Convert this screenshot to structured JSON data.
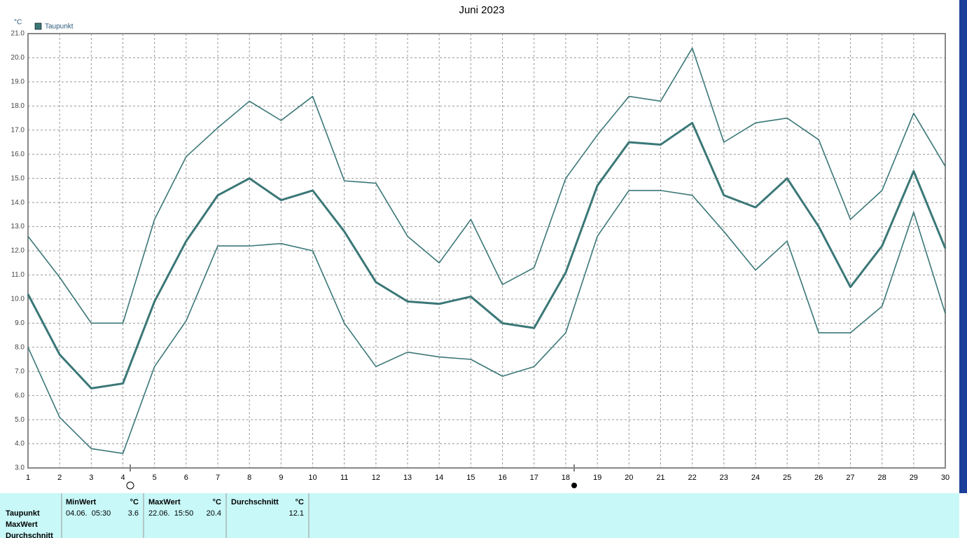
{
  "chart_data": {
    "type": "line",
    "title": "Juni 2023",
    "y_label": "°C",
    "x": [
      1,
      2,
      3,
      4,
      5,
      6,
      7,
      8,
      9,
      10,
      11,
      12,
      13,
      14,
      15,
      16,
      17,
      18,
      19,
      20,
      21,
      22,
      23,
      24,
      25,
      26,
      27,
      28,
      29,
      30
    ],
    "xlim": [
      1,
      30
    ],
    "xticks": [
      1,
      2,
      3,
      4,
      5,
      6,
      7,
      8,
      9,
      10,
      11,
      12,
      13,
      14,
      15,
      16,
      17,
      18,
      19,
      20,
      21,
      22,
      23,
      24,
      25,
      26,
      27,
      28,
      29,
      30
    ],
    "ylim": [
      3,
      21
    ],
    "yticks": [
      {
        "value": 3,
        "label": "3.0"
      },
      {
        "value": 4,
        "label": "4.0"
      },
      {
        "value": 5,
        "label": "5.0"
      },
      {
        "value": 6,
        "label": "6.0"
      },
      {
        "value": 7,
        "label": "7.0"
      },
      {
        "value": 8,
        "label": "8.0"
      },
      {
        "value": 9,
        "label": "9.0"
      },
      {
        "value": 10,
        "label": "10.0"
      },
      {
        "value": 11,
        "label": "11.0"
      },
      {
        "value": 12,
        "label": "12.0"
      },
      {
        "value": 13,
        "label": "13.0"
      },
      {
        "value": 14,
        "label": "14.0"
      },
      {
        "value": 15,
        "label": "15.0"
      },
      {
        "value": 16,
        "label": "16.0"
      },
      {
        "value": 17,
        "label": "17.0"
      },
      {
        "value": 18,
        "label": "18.0"
      },
      {
        "value": 19,
        "label": "19.0"
      },
      {
        "value": 20,
        "label": "20.0"
      },
      {
        "value": 21,
        "label": "21.0"
      }
    ],
    "grid": true,
    "legend": "top-left",
    "series": [
      {
        "name": "Taupunkt",
        "color": "#3b7777",
        "values": [
          10.2,
          7.7,
          6.3,
          6.5,
          9.9,
          12.4,
          14.3,
          15.0,
          14.1,
          14.5,
          12.8,
          10.7,
          9.9,
          9.8,
          10.1,
          9.0,
          8.8,
          11.1,
          14.7,
          16.5,
          16.4,
          17.3,
          14.3,
          13.8,
          15.0,
          13.0,
          10.5,
          12.2,
          15.3,
          12.1
        ]
      },
      {
        "color": "#3b7777",
        "values": [
          12.6,
          10.9,
          9.0,
          9.0,
          13.3,
          15.9,
          17.1,
          18.2,
          17.4,
          18.4,
          14.9,
          14.8,
          12.6,
          11.5,
          13.3,
          10.6,
          11.3,
          15.0,
          16.8,
          18.4,
          18.2,
          20.4,
          16.5,
          17.3,
          17.5,
          16.6,
          13.3,
          14.5,
          17.7,
          15.5
        ]
      },
      {
        "color": "#3b7777",
        "values": [
          8.0,
          5.1,
          3.8,
          3.6,
          7.2,
          9.1,
          12.2,
          12.2,
          12.3,
          12.0,
          9.0,
          7.2,
          7.8,
          7.6,
          7.5,
          6.8,
          7.2,
          8.6,
          12.6,
          14.5,
          14.5,
          14.3,
          12.8,
          11.2,
          12.4,
          8.6,
          8.6,
          9.7,
          13.6,
          9.4
        ]
      }
    ]
  },
  "table": {
    "header": {
      "min": "MinWert",
      "min_unit": "°C",
      "max": "MaxWert",
      "max_unit": "°C",
      "avg": "Durchschnitt",
      "avg_unit": "°C"
    },
    "row_labels": [
      "Taupunkt",
      "MaxWert",
      "Durchschnitt"
    ],
    "rows": [
      {
        "min_time": "04.06.  05:30",
        "min": 3.6,
        "max_time": "22.06.  15:50",
        "max": 20.4,
        "avg": 12.1
      }
    ]
  }
}
